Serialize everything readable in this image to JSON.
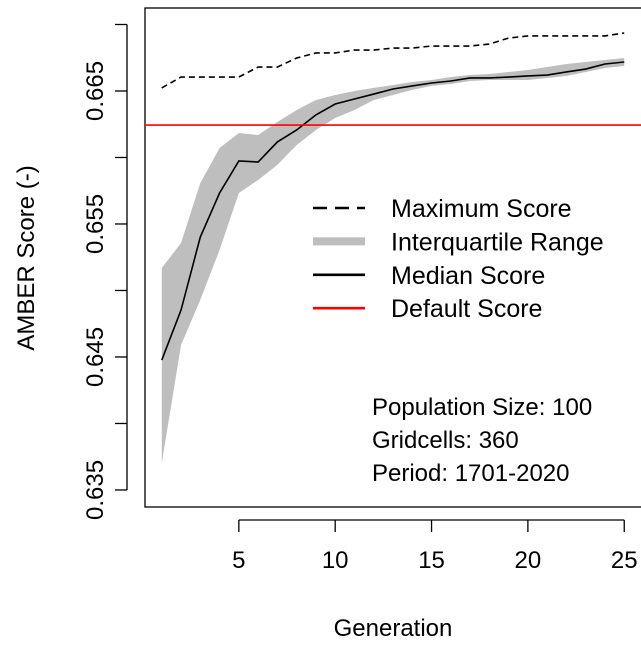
{
  "chart_data": {
    "type": "line",
    "x": [
      1,
      2,
      3,
      4,
      5,
      6,
      7,
      8,
      9,
      10,
      11,
      12,
      13,
      14,
      15,
      16,
      17,
      18,
      19,
      20,
      21,
      22,
      23,
      24,
      25
    ],
    "series": [
      {
        "name": "Maximum Score",
        "color": "#000000",
        "dashed": true,
        "values": [
          0.66523,
          0.66605,
          0.66605,
          0.66605,
          0.66605,
          0.6668,
          0.6668,
          0.66748,
          0.66786,
          0.66786,
          0.66808,
          0.66808,
          0.66823,
          0.66823,
          0.66838,
          0.66838,
          0.66838,
          0.66853,
          0.66898,
          0.66914,
          0.66914,
          0.66914,
          0.66914,
          0.66914,
          0.66936
        ]
      },
      {
        "name": "Interquartile Range",
        "color": "#bebebe",
        "low": [
          0.63703,
          0.6459,
          0.64929,
          0.65304,
          0.65733,
          0.65831,
          0.65944,
          0.66094,
          0.66207,
          0.66297,
          0.66357,
          0.66432,
          0.6647,
          0.66508,
          0.66538,
          0.66553,
          0.66575,
          0.66583,
          0.66583,
          0.66583,
          0.66598,
          0.66613,
          0.66643,
          0.66673,
          0.66688
        ],
        "high": [
          0.65169,
          0.65357,
          0.65808,
          0.66071,
          0.66184,
          0.66169,
          0.66267,
          0.66357,
          0.66432,
          0.6647,
          0.665,
          0.66523,
          0.66545,
          0.66568,
          0.66583,
          0.66605,
          0.6662,
          0.66628,
          0.66643,
          0.66658,
          0.6668,
          0.66703,
          0.66718,
          0.66733,
          0.66748
        ]
      },
      {
        "name": "Median Score",
        "color": "#000000",
        "values": [
          0.64477,
          0.64853,
          0.65402,
          0.65733,
          0.65974,
          0.65966,
          0.66117,
          0.66207,
          0.6632,
          0.66402,
          0.6644,
          0.66477,
          0.66515,
          0.66538,
          0.6656,
          0.66575,
          0.66598,
          0.66598,
          0.66605,
          0.66613,
          0.6662,
          0.66643,
          0.66665,
          0.66703,
          0.66718
        ]
      },
      {
        "name": "Default Score",
        "color": "#ff0000",
        "value": 0.66244
      }
    ],
    "xlabel": "Generation",
    "ylabel": "AMBER Score (-)",
    "xlim": [
      0.13,
      25.87
    ],
    "ylim": [
      0.63372,
      0.67124
    ],
    "xticks": [
      5,
      10,
      15,
      20,
      25
    ],
    "yticks": [
      0.635,
      0.645,
      0.655,
      0.665
    ],
    "yticks_minor": [
      0.64,
      0.65,
      0.66,
      0.67
    ],
    "annotations": [
      "Population Size: 100",
      "Gridcells: 360",
      "Period: 1701-2020"
    ]
  }
}
